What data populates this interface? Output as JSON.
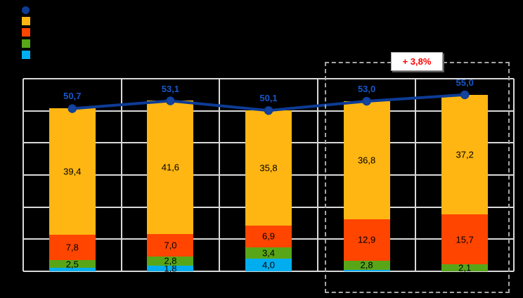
{
  "chart": {
    "background": "#000000",
    "grid_color": "#D9D9D9"
  },
  "legend": {
    "position": "top-left",
    "items": [
      {
        "name": "total-line",
        "marker": "circle",
        "color": "#0D3C96"
      },
      {
        "name": "yellow-segment",
        "marker": "square",
        "color": "#FFB612"
      },
      {
        "name": "red-segment",
        "marker": "square",
        "color": "#FF4500"
      },
      {
        "name": "green-segment",
        "marker": "square",
        "color": "#58A618"
      },
      {
        "name": "lightblue-segment",
        "marker": "square",
        "color": "#00AEEF"
      }
    ]
  },
  "chart_data": {
    "type": "bar",
    "subtype": "stacked-columns-with-total-line",
    "categories": [
      "",
      "",
      "",
      "",
      ""
    ],
    "ylim": [
      0,
      60
    ],
    "gridline_step": 10,
    "grid": true,
    "legend_position": "top-left",
    "series": [
      {
        "name": "lightblue",
        "color": "#00AEEF",
        "values": [
          1.0,
          1.8,
          4.0,
          0.5,
          0
        ],
        "labels": [
          "",
          "1,8",
          "4,0",
          "",
          ""
        ]
      },
      {
        "name": "green",
        "color": "#58A618",
        "values": [
          2.5,
          2.8,
          3.4,
          2.8,
          2.1
        ],
        "labels": [
          "2,5",
          "2,8",
          "3,4",
          "2,8",
          "2,1"
        ]
      },
      {
        "name": "red",
        "color": "#FF4500",
        "values": [
          7.8,
          7.0,
          6.9,
          12.9,
          15.7
        ],
        "labels": [
          "7,8",
          "7,0",
          "6,9",
          "12,9",
          "15,7"
        ]
      },
      {
        "name": "yellow",
        "color": "#FFB612",
        "values": [
          39.4,
          41.6,
          35.8,
          36.8,
          37.2
        ],
        "labels": [
          "39,4",
          "41,6",
          "35,8",
          "36,8",
          "37,2"
        ]
      }
    ],
    "line": {
      "name": "total",
      "color": "#0D3C96",
      "marker_color": "#14449E",
      "label_color": "#1757C9",
      "values": [
        50.7,
        53.1,
        50.1,
        53.0,
        55.0
      ],
      "labels": [
        "50,7",
        "53,1",
        "50,1",
        "53,0",
        "55,0"
      ]
    },
    "annotation": {
      "text": "+ 3,8%",
      "text_color": "#FF0000",
      "box_style": "dashed",
      "covers": "last 2 categories"
    }
  }
}
